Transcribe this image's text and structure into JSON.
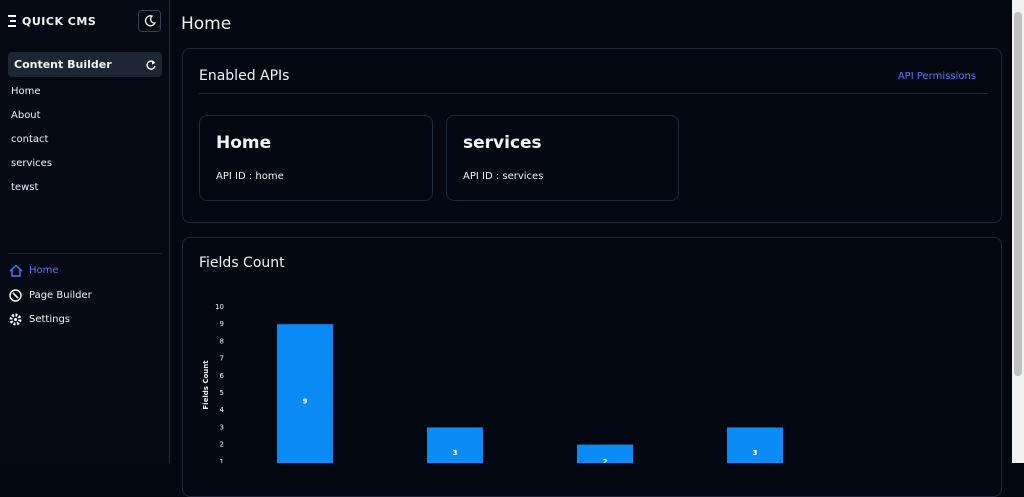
{
  "sidebar": {
    "logo": "QUICK CMS",
    "section_title": "Content Builder",
    "pages": [
      "Home",
      "About",
      "contact",
      "services",
      "tewst"
    ],
    "nav": [
      "Home",
      "Page Builder",
      "Settings"
    ]
  },
  "header": {
    "title": "Home"
  },
  "apis": {
    "title": "Enabled APIs",
    "link": "API Permissions",
    "cards": [
      {
        "name": "Home",
        "api_id": "API ID : home"
      },
      {
        "name": "services",
        "api_id": "API ID : services"
      }
    ]
  },
  "chart_data": {
    "type": "bar",
    "title": "Fields Count",
    "y_label": "Fields Count",
    "categories": [
      null,
      null,
      null,
      null
    ],
    "values": [
      9,
      3,
      2,
      3
    ],
    "color": "#0a8af5",
    "ylim": [
      0,
      10
    ],
    "yticks": [
      1,
      2,
      3,
      4,
      5,
      6,
      7,
      8,
      9,
      10
    ],
    "grid": false
  }
}
